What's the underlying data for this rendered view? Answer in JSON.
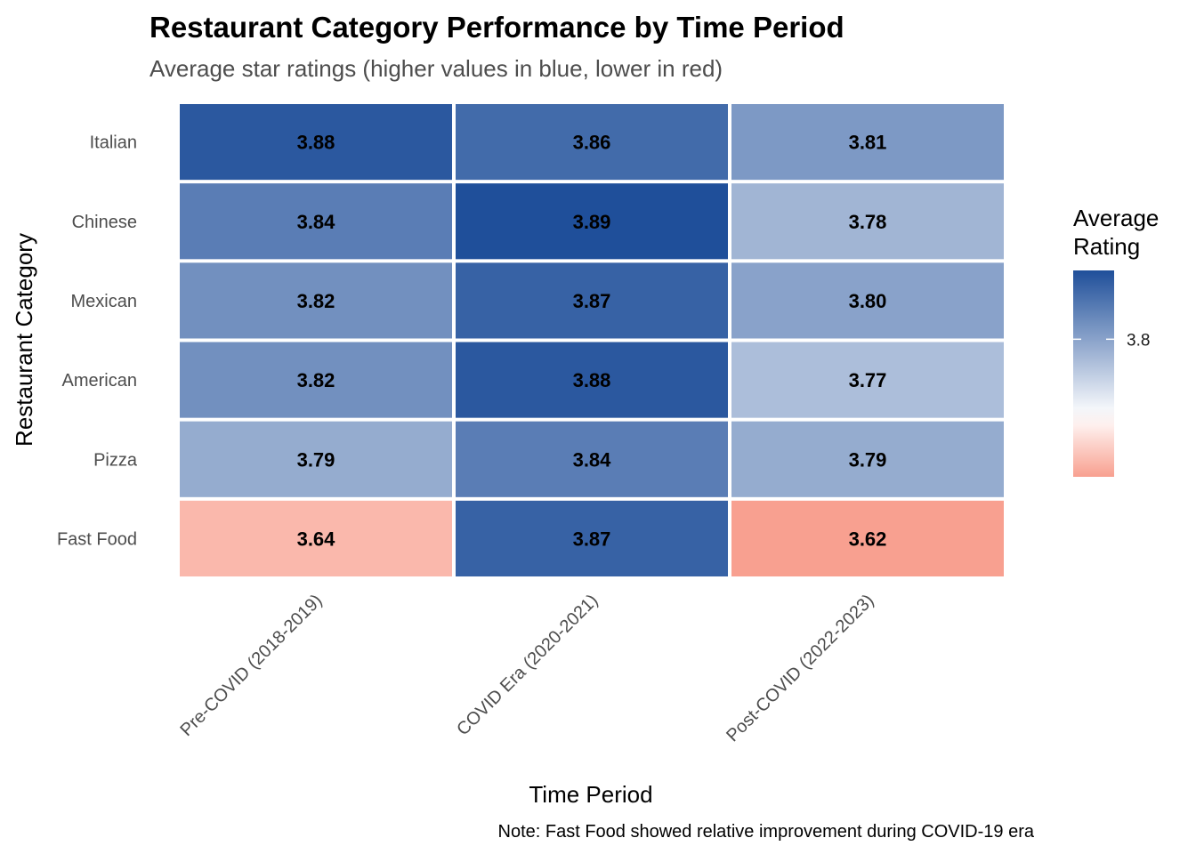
{
  "chart_data": {
    "type": "heatmap",
    "title": "Restaurant Category Performance by Time Period",
    "subtitle": "Average star ratings (higher values in blue, lower in red)",
    "xlabel": "Time Period",
    "ylabel": "Restaurant Category",
    "caption": "Note: Fast Food showed relative improvement during COVID-19 era",
    "x_categories": [
      "Pre-COVID (2018-2019)",
      "COVID Era (2020-2021)",
      "Post-COVID (2022-2023)"
    ],
    "y_categories": [
      "Italian",
      "Chinese",
      "Mexican",
      "American",
      "Pizza",
      "Fast Food"
    ],
    "values": [
      [
        3.88,
        3.86,
        3.81
      ],
      [
        3.84,
        3.89,
        3.78
      ],
      [
        3.82,
        3.87,
        3.8
      ],
      [
        3.82,
        3.88,
        3.77
      ],
      [
        3.79,
        3.84,
        3.79
      ],
      [
        3.64,
        3.87,
        3.62
      ]
    ],
    "value_labels": [
      [
        "3.88",
        "3.86",
        "3.81"
      ],
      [
        "3.84",
        "3.89",
        "3.78"
      ],
      [
        "3.82",
        "3.87",
        "3.80"
      ],
      [
        "3.82",
        "3.88",
        "3.77"
      ],
      [
        "3.79",
        "3.84",
        "3.79"
      ],
      [
        "3.64",
        "3.87",
        "3.62"
      ]
    ],
    "legend": {
      "title_lines": [
        "Average",
        "Rating"
      ],
      "position": "right",
      "tick_values": [
        3.8
      ],
      "tick_labels": [
        "3.8"
      ]
    },
    "color_scale": {
      "low": "#f8a090",
      "mid": "#ffffff",
      "high": "#1f4f9a",
      "midpoint": 3.7,
      "domain": [
        3.62,
        3.89
      ]
    },
    "grid": false
  }
}
